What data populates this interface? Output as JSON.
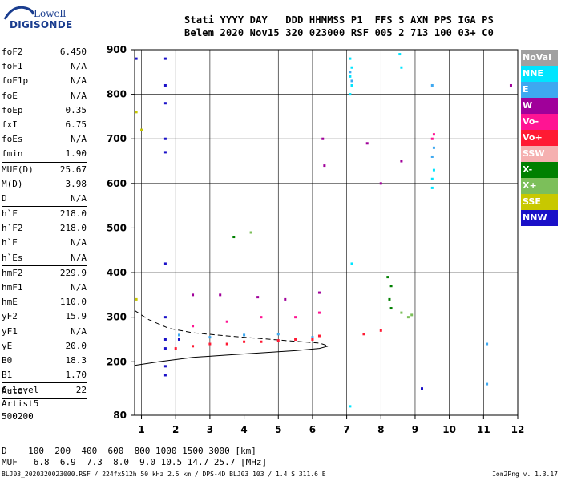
{
  "logo": {
    "line1": "Lowell",
    "line2": "DIGISONDE"
  },
  "header": {
    "line1": "Stati YYYY DAY   DDD HHMMSS P1  FFS S AXN PPS IGA PS",
    "line2": "Belem 2020 Nov15 320 023000 RSF 005 2 713 100 03+ C0"
  },
  "params": [
    {
      "name": "foF2",
      "value": "6.450"
    },
    {
      "name": "foF1",
      "value": "N/A"
    },
    {
      "name": "foF1p",
      "value": "N/A"
    },
    {
      "name": "foE",
      "value": "N/A"
    },
    {
      "name": "foEp",
      "value": "0.35"
    },
    {
      "name": "fxI",
      "value": "6.75"
    },
    {
      "name": "foEs",
      "value": "N/A"
    },
    {
      "name": "fmin",
      "value": "1.90"
    },
    {
      "sep": true
    },
    {
      "name": "MUF(D)",
      "value": "25.67"
    },
    {
      "name": "M(D)",
      "value": "3.98"
    },
    {
      "name": "D",
      "value": "N/A"
    },
    {
      "sep": true
    },
    {
      "name": "h`F",
      "value": "218.0"
    },
    {
      "name": "h`F2",
      "value": "218.0"
    },
    {
      "name": "h`E",
      "value": "N/A"
    },
    {
      "name": "h`Es",
      "value": "N/A"
    },
    {
      "sep": true
    },
    {
      "name": "hmF2",
      "value": "229.9"
    },
    {
      "name": "hmF1",
      "value": "N/A"
    },
    {
      "name": "hmE",
      "value": "110.0"
    },
    {
      "name": "yF2",
      "value": "15.9"
    },
    {
      "name": "yF1",
      "value": "N/A"
    },
    {
      "name": "yE",
      "value": "20.0"
    },
    {
      "name": "B0",
      "value": "18.3"
    },
    {
      "name": "B1",
      "value": "1.70"
    },
    {
      "sep": true
    },
    {
      "name": "C-level",
      "value": "22"
    },
    {
      "sep": true
    }
  ],
  "auto": {
    "line1": "Auto:",
    "line2": "Artist5",
    "line3": "500200"
  },
  "footer": {
    "line1": "D    100  200  400  600  800 1000 1500 3000 [km]",
    "line2": "MUF   6.8  6.9  7.3  8.0  9.0 10.5 14.7 25.7 [MHz]",
    "source": "BLJ03_2020320023000.RSF / 224fx512h 50 kHz 2.5 km / DPS-4D BLJ03 103 / 1.4 S 311.6 E",
    "version": "Ion2Png v. 1.3.17"
  },
  "legend": [
    {
      "label": "NoVal",
      "color": "#a0a0a0"
    },
    {
      "label": "NNE",
      "color": "#00e5ff"
    },
    {
      "label": "E",
      "color": "#3ea8f0"
    },
    {
      "label": "W",
      "color": "#a0009a"
    },
    {
      "label": "Vo-",
      "color": "#ff1493"
    },
    {
      "label": "Vo+",
      "color": "#ff1a33"
    },
    {
      "label": "SSW",
      "color": "#f5b0b0"
    },
    {
      "label": "X-",
      "color": "#008000"
    },
    {
      "label": "X+",
      "color": "#7cbf5a"
    },
    {
      "label": "SSE",
      "color": "#c8c800"
    },
    {
      "label": "NNW",
      "color": "#1a10c8"
    }
  ],
  "chart_data": {
    "type": "scatter",
    "title": "",
    "xlabel": "",
    "ylabel": "",
    "xlim": [
      0.8,
      12.0
    ],
    "ylim": [
      80,
      900
    ],
    "x_ticks": [
      "1",
      "2",
      "3",
      "4",
      "5",
      "6",
      "7",
      "8",
      "9",
      "10",
      "11",
      "12"
    ],
    "y_ticks": [
      "80",
      "200",
      "300",
      "400",
      "500",
      "600",
      "700",
      "800",
      "900"
    ],
    "grid": true,
    "legend_position": "right",
    "series": [
      {
        "name": "NNE",
        "color": "#00e5ff",
        "points": [
          [
            7.1,
            880
          ],
          [
            7.15,
            860
          ],
          [
            7.1,
            840
          ],
          [
            7.15,
            820
          ],
          [
            7.1,
            800
          ],
          [
            7.15,
            420
          ],
          [
            7.1,
            100
          ],
          [
            8.55,
            890
          ],
          [
            8.6,
            860
          ],
          [
            9.5,
            590
          ],
          [
            9.5,
            610
          ],
          [
            9.55,
            630
          ]
        ]
      },
      {
        "name": "E",
        "color": "#3ea8f0",
        "points": [
          [
            7.1,
            850
          ],
          [
            7.15,
            830
          ],
          [
            9.5,
            820
          ],
          [
            9.55,
            680
          ],
          [
            9.5,
            660
          ],
          [
            11.1,
            240
          ],
          [
            11.1,
            150
          ],
          [
            2.1,
            260
          ],
          [
            3.0,
            255
          ],
          [
            4.0,
            260
          ],
          [
            5.0,
            262
          ],
          [
            6.0,
            255
          ]
        ]
      },
      {
        "name": "W",
        "color": "#a0009a",
        "points": [
          [
            2.5,
            350
          ],
          [
            3.3,
            350
          ],
          [
            4.4,
            345
          ],
          [
            5.2,
            340
          ],
          [
            6.2,
            355
          ],
          [
            6.3,
            700
          ],
          [
            6.35,
            640
          ],
          [
            7.6,
            690
          ],
          [
            8.0,
            600
          ],
          [
            8.6,
            650
          ],
          [
            11.8,
            820
          ]
        ]
      },
      {
        "name": "Vo-",
        "color": "#ff1493",
        "points": [
          [
            2.5,
            280
          ],
          [
            3.5,
            290
          ],
          [
            4.5,
            300
          ],
          [
            5.5,
            300
          ],
          [
            6.2,
            310
          ],
          [
            9.5,
            700
          ],
          [
            9.55,
            710
          ]
        ]
      },
      {
        "name": "Vo+",
        "color": "#ff1a33",
        "points": [
          [
            2.0,
            230
          ],
          [
            2.5,
            235
          ],
          [
            3.0,
            240
          ],
          [
            3.5,
            240
          ],
          [
            4.0,
            245
          ],
          [
            4.5,
            245
          ],
          [
            5.0,
            248
          ],
          [
            5.5,
            250
          ],
          [
            6.0,
            250
          ],
          [
            6.2,
            258
          ],
          [
            7.5,
            262
          ],
          [
            8.0,
            270
          ]
        ]
      },
      {
        "name": "X-",
        "color": "#008000",
        "points": [
          [
            8.2,
            390
          ],
          [
            8.3,
            370
          ],
          [
            8.25,
            340
          ],
          [
            8.3,
            320
          ],
          [
            3.7,
            480
          ]
        ]
      },
      {
        "name": "X+",
        "color": "#7cbf5a",
        "points": [
          [
            8.6,
            310
          ],
          [
            8.8,
            300
          ],
          [
            8.9,
            305
          ],
          [
            4.2,
            490
          ]
        ]
      },
      {
        "name": "SSE",
        "color": "#c8c800",
        "points": [
          [
            0.85,
            760
          ],
          [
            1.0,
            720
          ],
          [
            0.85,
            340
          ]
        ]
      },
      {
        "name": "NNW",
        "color": "#1a10c8",
        "points": [
          [
            0.85,
            880
          ],
          [
            1.7,
            880
          ],
          [
            1.7,
            820
          ],
          [
            1.7,
            780
          ],
          [
            1.7,
            700
          ],
          [
            1.7,
            670
          ],
          [
            1.7,
            420
          ],
          [
            1.7,
            300
          ],
          [
            1.7,
            250
          ],
          [
            1.7,
            230
          ],
          [
            1.7,
            190
          ],
          [
            1.7,
            170
          ],
          [
            2.1,
            250
          ],
          [
            9.2,
            140
          ]
        ]
      }
    ],
    "traces": [
      {
        "label": "profile",
        "style": "solid",
        "points": [
          [
            0.8,
            192
          ],
          [
            1.5,
            200
          ],
          [
            2.5,
            210
          ],
          [
            3.5,
            215
          ],
          [
            4.5,
            220
          ],
          [
            5.5,
            225
          ],
          [
            6.2,
            230
          ],
          [
            6.45,
            235
          ]
        ]
      },
      {
        "label": "virtual-height",
        "style": "dashed",
        "points": [
          [
            0.8,
            315
          ],
          [
            1.2,
            295
          ],
          [
            1.8,
            275
          ],
          [
            2.5,
            265
          ],
          [
            3.5,
            258
          ],
          [
            4.5,
            252
          ],
          [
            5.5,
            246
          ],
          [
            6.2,
            242
          ],
          [
            6.45,
            236
          ]
        ]
      }
    ]
  }
}
